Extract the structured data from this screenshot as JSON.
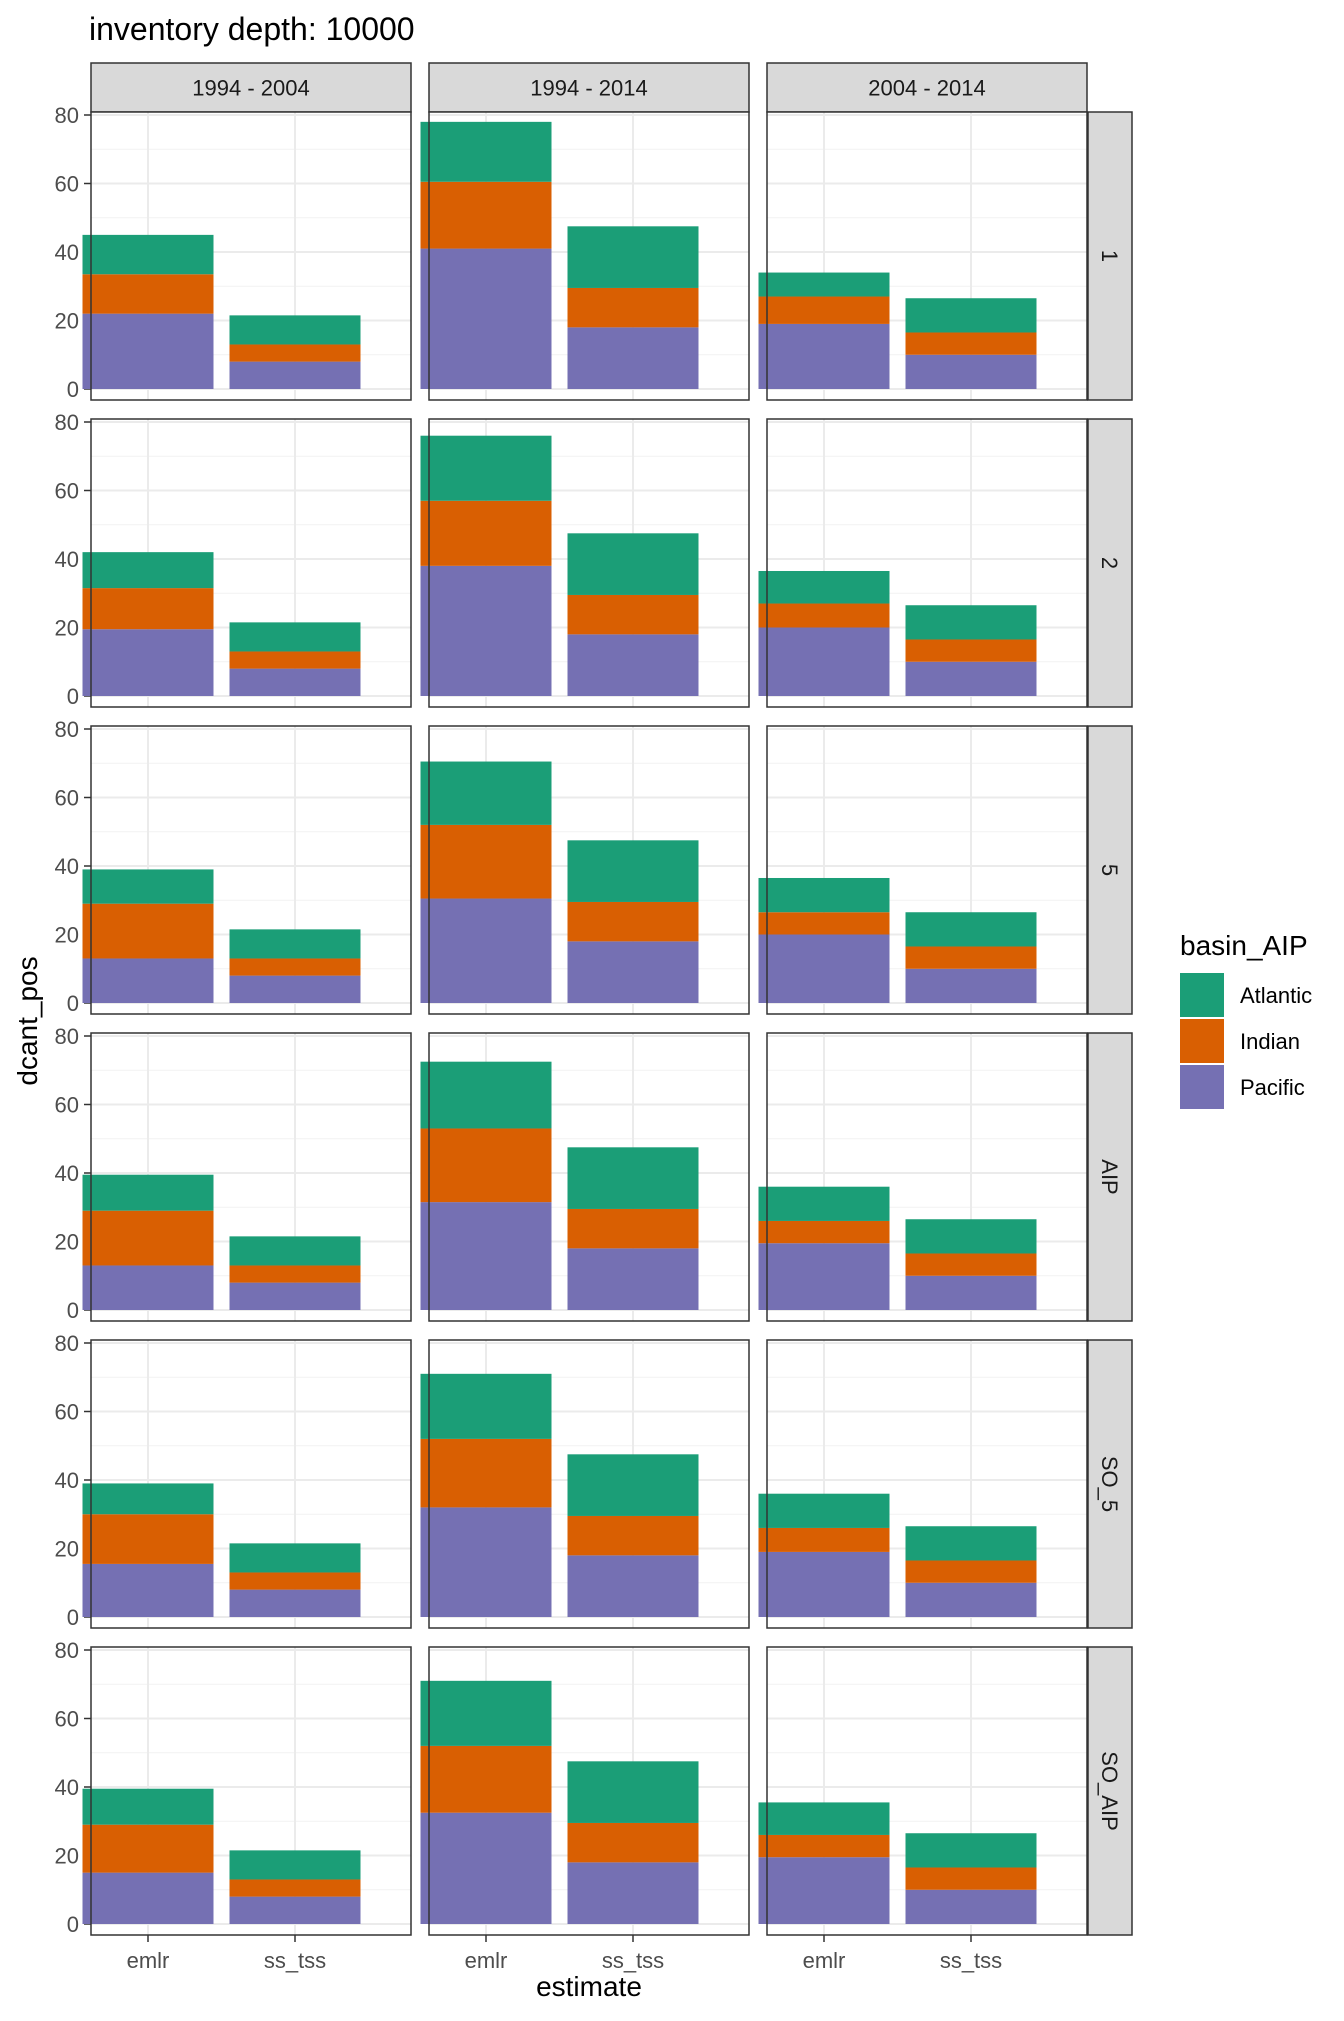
{
  "chart_data": {
    "type": "bar",
    "stacked": true,
    "faceted": true,
    "title": "inventory depth: 10000",
    "xlabel": "estimate",
    "ylabel": "dcant_pos",
    "ylim": [
      0,
      80
    ],
    "yticks": [
      0,
      20,
      40,
      60,
      80
    ],
    "grid": true,
    "legend_position": "right",
    "legend": {
      "title": "basin_AIP",
      "entries": [
        {
          "name": "Atlantic",
          "color": "#1b9e77"
        },
        {
          "name": "Indian",
          "color": "#d95f02"
        },
        {
          "name": "Pacific",
          "color": "#7570b3"
        }
      ]
    },
    "categories": [
      "emlr",
      "ss_tss"
    ],
    "column_facets": [
      "1994 - 2004",
      "1994 - 2014",
      "2004 - 2014"
    ],
    "row_facets": [
      "1",
      "2",
      "5",
      "AIP",
      "SO_5",
      "SO_AIP"
    ],
    "stack_order_bottom_to_top": [
      "Pacific",
      "Indian",
      "Atlantic"
    ],
    "panels": [
      {
        "row": "1",
        "col": "1994 - 2004",
        "values": {
          "emlr": {
            "Pacific": 22,
            "Indian": 11.5,
            "Atlantic": 11.5
          },
          "ss_tss": {
            "Pacific": 8,
            "Indian": 5,
            "Atlantic": 8.5
          }
        }
      },
      {
        "row": "1",
        "col": "1994 - 2014",
        "values": {
          "emlr": {
            "Pacific": 41,
            "Indian": 19.5,
            "Atlantic": 17.5
          },
          "ss_tss": {
            "Pacific": 18,
            "Indian": 11.5,
            "Atlantic": 18
          }
        }
      },
      {
        "row": "1",
        "col": "2004 - 2014",
        "values": {
          "emlr": {
            "Pacific": 19,
            "Indian": 8,
            "Atlantic": 7
          },
          "ss_tss": {
            "Pacific": 10,
            "Indian": 6.5,
            "Atlantic": 10
          }
        }
      },
      {
        "row": "2",
        "col": "1994 - 2004",
        "values": {
          "emlr": {
            "Pacific": 19.5,
            "Indian": 12,
            "Atlantic": 10.5
          },
          "ss_tss": {
            "Pacific": 8,
            "Indian": 5,
            "Atlantic": 8.5
          }
        }
      },
      {
        "row": "2",
        "col": "1994 - 2014",
        "values": {
          "emlr": {
            "Pacific": 38,
            "Indian": 19,
            "Atlantic": 19
          },
          "ss_tss": {
            "Pacific": 18,
            "Indian": 11.5,
            "Atlantic": 18
          }
        }
      },
      {
        "row": "2",
        "col": "2004 - 2014",
        "values": {
          "emlr": {
            "Pacific": 20,
            "Indian": 7,
            "Atlantic": 9.5
          },
          "ss_tss": {
            "Pacific": 10,
            "Indian": 6.5,
            "Atlantic": 10
          }
        }
      },
      {
        "row": "5",
        "col": "1994 - 2004",
        "values": {
          "emlr": {
            "Pacific": 13,
            "Indian": 16,
            "Atlantic": 10
          },
          "ss_tss": {
            "Pacific": 8,
            "Indian": 5,
            "Atlantic": 8.5
          }
        }
      },
      {
        "row": "5",
        "col": "1994 - 2014",
        "values": {
          "emlr": {
            "Pacific": 30.5,
            "Indian": 21.5,
            "Atlantic": 18.5
          },
          "ss_tss": {
            "Pacific": 18,
            "Indian": 11.5,
            "Atlantic": 18
          }
        }
      },
      {
        "row": "5",
        "col": "2004 - 2014",
        "values": {
          "emlr": {
            "Pacific": 20,
            "Indian": 6.5,
            "Atlantic": 10
          },
          "ss_tss": {
            "Pacific": 10,
            "Indian": 6.5,
            "Atlantic": 10
          }
        }
      },
      {
        "row": "AIP",
        "col": "1994 - 2004",
        "values": {
          "emlr": {
            "Pacific": 13,
            "Indian": 16,
            "Atlantic": 10.5
          },
          "ss_tss": {
            "Pacific": 8,
            "Indian": 5,
            "Atlantic": 8.5
          }
        }
      },
      {
        "row": "AIP",
        "col": "1994 - 2014",
        "values": {
          "emlr": {
            "Pacific": 31.5,
            "Indian": 21.5,
            "Atlantic": 19.5
          },
          "ss_tss": {
            "Pacific": 18,
            "Indian": 11.5,
            "Atlantic": 18
          }
        }
      },
      {
        "row": "AIP",
        "col": "2004 - 2014",
        "values": {
          "emlr": {
            "Pacific": 19.5,
            "Indian": 6.5,
            "Atlantic": 10
          },
          "ss_tss": {
            "Pacific": 10,
            "Indian": 6.5,
            "Atlantic": 10
          }
        }
      },
      {
        "row": "SO_5",
        "col": "1994 - 2004",
        "values": {
          "emlr": {
            "Pacific": 15.5,
            "Indian": 14.5,
            "Atlantic": 9
          },
          "ss_tss": {
            "Pacific": 8,
            "Indian": 5,
            "Atlantic": 8.5
          }
        }
      },
      {
        "row": "SO_5",
        "col": "1994 - 2014",
        "values": {
          "emlr": {
            "Pacific": 32,
            "Indian": 20,
            "Atlantic": 19
          },
          "ss_tss": {
            "Pacific": 18,
            "Indian": 11.5,
            "Atlantic": 18
          }
        }
      },
      {
        "row": "SO_5",
        "col": "2004 - 2014",
        "values": {
          "emlr": {
            "Pacific": 19,
            "Indian": 7,
            "Atlantic": 10
          },
          "ss_tss": {
            "Pacific": 10,
            "Indian": 6.5,
            "Atlantic": 10
          }
        }
      },
      {
        "row": "SO_AIP",
        "col": "1994 - 2004",
        "values": {
          "emlr": {
            "Pacific": 15,
            "Indian": 14,
            "Atlantic": 10.5
          },
          "ss_tss": {
            "Pacific": 8,
            "Indian": 5,
            "Atlantic": 8.5
          }
        }
      },
      {
        "row": "SO_AIP",
        "col": "1994 - 2014",
        "values": {
          "emlr": {
            "Pacific": 32.5,
            "Indian": 19.5,
            "Atlantic": 19
          },
          "ss_tss": {
            "Pacific": 18,
            "Indian": 11.5,
            "Atlantic": 18
          }
        }
      },
      {
        "row": "SO_AIP",
        "col": "2004 - 2014",
        "values": {
          "emlr": {
            "Pacific": 19.5,
            "Indian": 6.5,
            "Atlantic": 9.5
          },
          "ss_tss": {
            "Pacific": 10,
            "Indian": 6.5,
            "Atlantic": 10
          }
        }
      }
    ]
  }
}
